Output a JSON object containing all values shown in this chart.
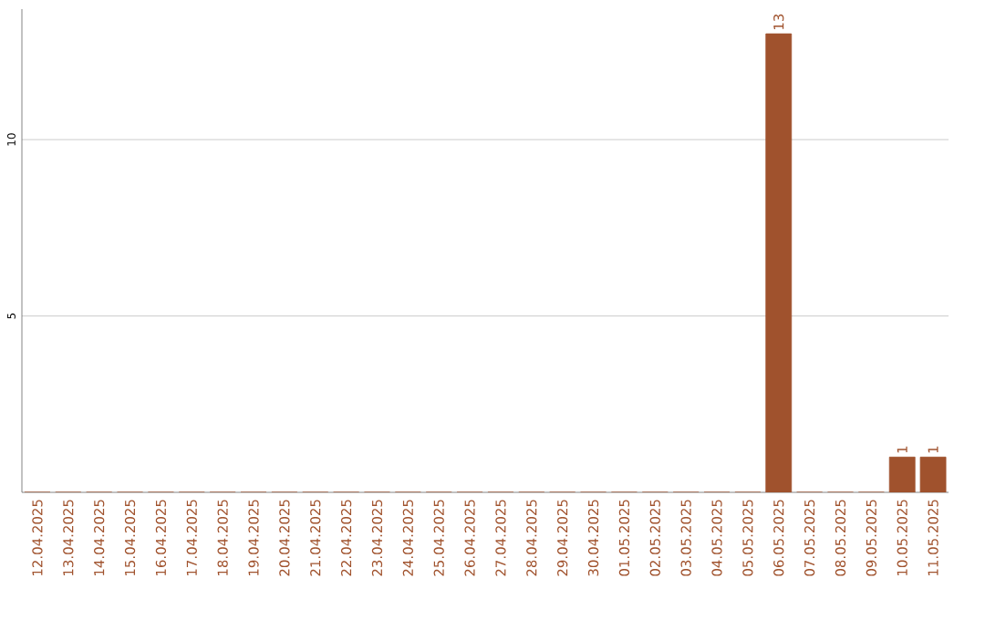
{
  "chart_data": {
    "type": "bar",
    "categories": [
      "12.04.2025",
      "13.04.2025",
      "14.04.2025",
      "15.04.2025",
      "16.04.2025",
      "17.04.2025",
      "18.04.2025",
      "19.04.2025",
      "20.04.2025",
      "21.04.2025",
      "22.04.2025",
      "23.04.2025",
      "24.04.2025",
      "25.04.2025",
      "26.04.2025",
      "27.04.2025",
      "28.04.2025",
      "29.04.2025",
      "30.04.2025",
      "01.05.2025",
      "02.05.2025",
      "03.05.2025",
      "04.05.2025",
      "05.05.2025",
      "06.05.2025",
      "07.05.2025",
      "08.05.2025",
      "09.05.2025",
      "10.05.2025",
      "11.05.2025"
    ],
    "values": [
      0,
      0,
      0,
      0,
      0,
      0,
      0,
      0,
      0,
      0,
      0,
      0,
      0,
      0,
      0,
      0,
      0,
      0,
      0,
      0,
      0,
      0,
      0,
      0,
      13,
      0,
      0,
      0,
      1,
      1
    ],
    "value_labels": [
      null,
      null,
      null,
      null,
      null,
      null,
      null,
      null,
      null,
      null,
      null,
      null,
      null,
      null,
      null,
      null,
      null,
      null,
      null,
      null,
      null,
      null,
      null,
      null,
      "13",
      null,
      null,
      null,
      "1",
      "1"
    ],
    "color": "#a0522d",
    "ylim": [
      0,
      13.7
    ],
    "yticks": [
      5,
      10
    ],
    "grid": "y"
  }
}
